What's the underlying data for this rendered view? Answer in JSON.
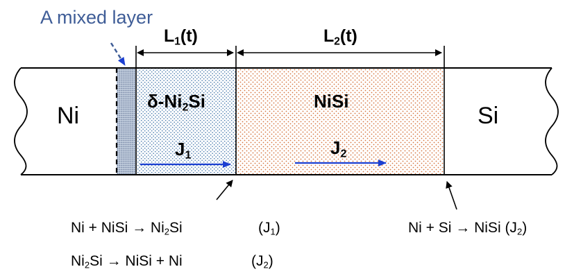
{
  "mixed_layer_label": "A mixed layer",
  "dimensions": {
    "L1": {
      "main": "L",
      "sub": "1",
      "suffix": "(t)"
    },
    "L2": {
      "main": "L",
      "sub": "2",
      "suffix": "(t)"
    }
  },
  "regions": {
    "ni": "Ni",
    "ni2si": {
      "prefix": "δ-Ni",
      "sub": "2",
      "suffix": "Si"
    },
    "nisi": "NiSi",
    "si": "Si"
  },
  "fluxes": {
    "J1": {
      "main": "J",
      "sub": "1"
    },
    "J2": {
      "main": "J",
      "sub": "2"
    }
  },
  "equations": {
    "eq1": {
      "lhs": "Ni + NiSi → Ni",
      "sub": "2",
      "rhs": "Si",
      "flux_open": "(J",
      "flux_sub": "1",
      "flux_close": ")"
    },
    "eq2": {
      "lhs_main": "Ni",
      "lhs_sub": "2",
      "lhs_rest": "Si → NiSi + Ni",
      "flux_open": "(J",
      "flux_sub": "2",
      "flux_close": ")"
    },
    "eq3": {
      "text": "Ni + Si → NiSi (J",
      "sub": "2",
      "close": ")"
    }
  },
  "colors": {
    "mixed_layer": "#9aa7bd",
    "ni2si_dots": "#4f7fb0",
    "nisi_dots": "#d5743f",
    "flux_arrow": "#1b3fd1",
    "title_blue": "#3f5d97"
  }
}
